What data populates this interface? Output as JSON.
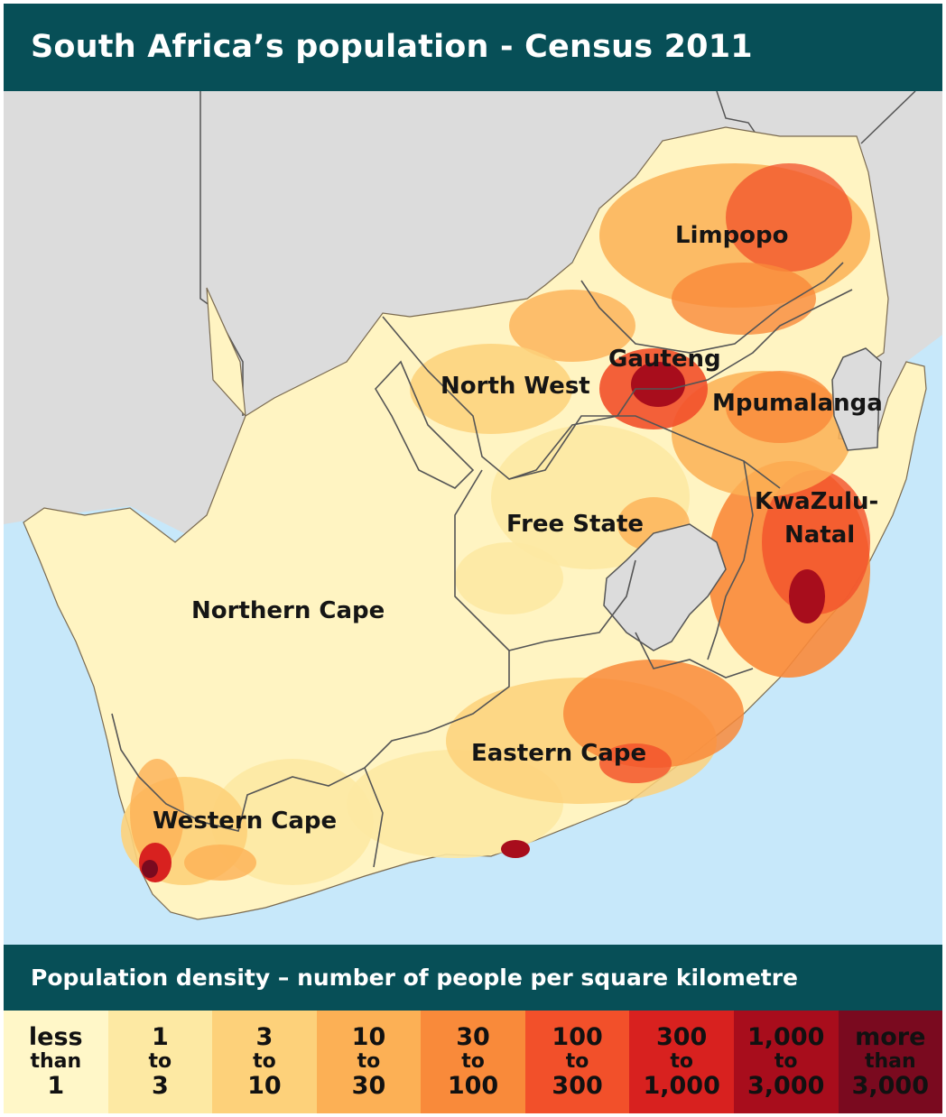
{
  "title": "South Africa’s population - Census 2011",
  "legend": {
    "heading": "Population density – number of people per square kilometre",
    "classes": [
      {
        "top": "less",
        "mid": "than",
        "bottom": "1",
        "color": "#fff7c8"
      },
      {
        "top": "1",
        "mid": "to",
        "bottom": "3",
        "color": "#fde9a3"
      },
      {
        "top": "3",
        "mid": "to",
        "bottom": "10",
        "color": "#fdd17a"
      },
      {
        "top": "10",
        "mid": "to",
        "bottom": "30",
        "color": "#fcb055"
      },
      {
        "top": "30",
        "mid": "to",
        "bottom": "100",
        "color": "#f98a3a"
      },
      {
        "top": "100",
        "mid": "to",
        "bottom": "300",
        "color": "#f2502a"
      },
      {
        "top": "300",
        "mid": "to",
        "bottom": "1,000",
        "color": "#d8211f"
      },
      {
        "top": "1,000",
        "mid": "to",
        "bottom": "3,000",
        "color": "#a80d1c"
      },
      {
        "top": "more",
        "mid": "than",
        "bottom": "3,000",
        "color": "#7a0a1f"
      }
    ]
  },
  "regions": {
    "limpopo": "Limpopo",
    "gauteng": "Gauteng",
    "north_west": "North West",
    "mpumalanga": "Mpumalanga",
    "kwazulu_1": "KwaZulu-",
    "kwazulu_2": "Natal",
    "free_state": "Free State",
    "northern_cape": "Northern Cape",
    "eastern_cape": "Eastern Cape",
    "western_cape": "Western Cape"
  },
  "colors": {
    "header_bg": "#074f57",
    "ocean": "#c7e8fa",
    "neighbour_land": "#dcdcdc"
  }
}
